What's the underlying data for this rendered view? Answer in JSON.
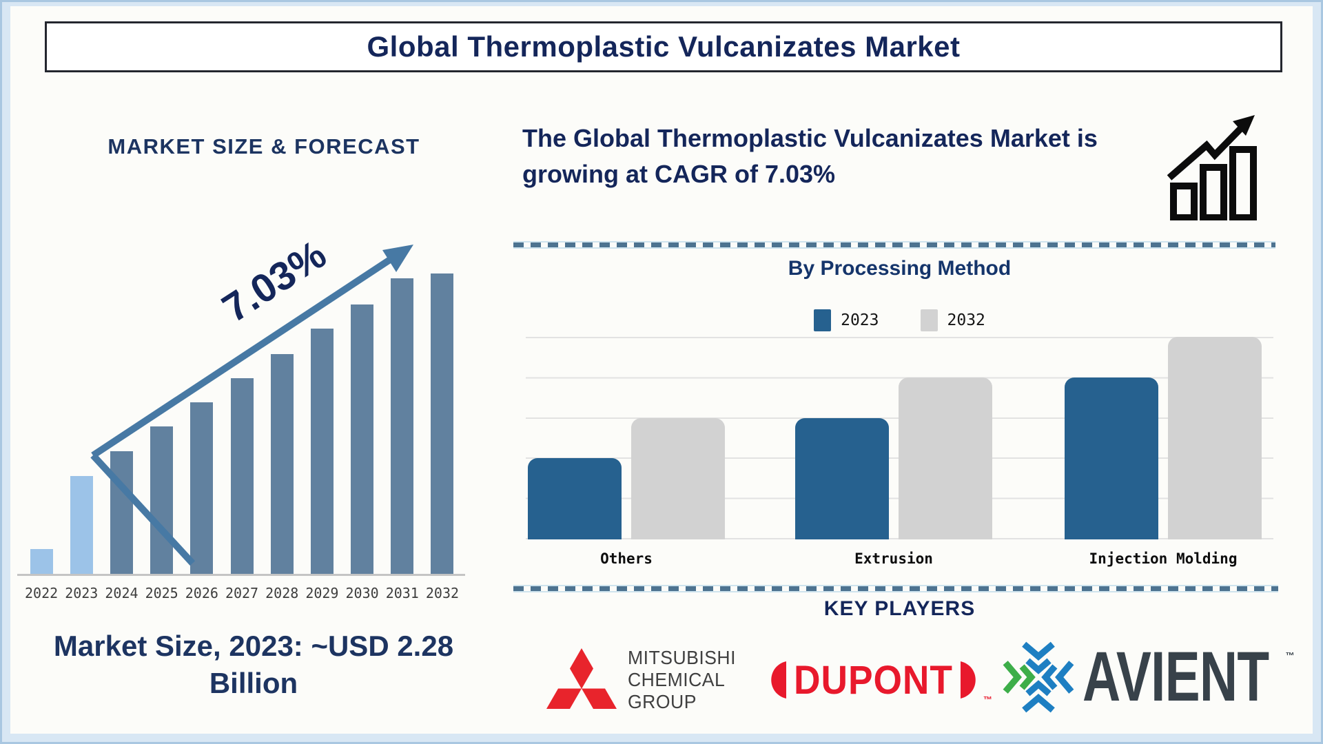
{
  "page": {
    "title": "Global Thermoplastic Vulcanizates Market"
  },
  "left_panel": {
    "section_title": "MARKET SIZE & FORECAST",
    "cagr_annotation": "7.03%",
    "market_size_note": "Market Size, 2023: ~USD 2.28 Billion",
    "arrow_icon": "growth-arrow-icon"
  },
  "right_panel": {
    "headline": "The Global Thermoplastic Vulcanizates Market is growing at CAGR of 7.03%",
    "growth_icon": "bar-chart-growth-icon",
    "method_section_title": "By Processing Method",
    "key_players_title": "KEY PLAYERS",
    "key_players": [
      {
        "name": "Mitsubishi Chemical Group",
        "logo_icon": "mitsubishi-three-diamonds-icon",
        "logo_line1": "MITSUBISHI",
        "logo_line2": "CHEMICAL",
        "logo_line3": "GROUP"
      },
      {
        "name": "DuPont",
        "logo_icon": "dupont-oval-icon",
        "logo_text": "DUPONT",
        "trademark": "™"
      },
      {
        "name": "Avient",
        "logo_icon": "avient-chevron-icon",
        "logo_text": "AVIENT",
        "trademark": "™"
      }
    ]
  },
  "colors": {
    "navy_text": "#14265a",
    "market_bar_highlight": "#9cc3e8",
    "market_bar_default": "#61819f",
    "arrow_blue": "#4779a4",
    "method_2023_blue": "#26618f",
    "method_2032_gray": "#d2d2d2",
    "dash_blue": "#4d7390",
    "dupont_red": "#e8192c",
    "mitsubishi_red": "#e8242c",
    "avient_green": "#3dae49",
    "avient_blue": "#1e7fc2",
    "avient_dark": "#38424a"
  },
  "chart_data": [
    {
      "id": "market_size_forecast",
      "type": "bar",
      "title": "MARKET SIZE & FORECAST",
      "categories": [
        "2022",
        "2023",
        "2024",
        "2025",
        "2026",
        "2027",
        "2028",
        "2029",
        "2030",
        "2031",
        "2032"
      ],
      "values_relative": [
        0.083,
        0.326,
        0.409,
        0.49,
        0.57,
        0.651,
        0.731,
        0.816,
        0.897,
        0.984,
        1.0
      ],
      "note": "Y-axis unlabeled; values are relative bar heights (fraction of 2032 bar). Context shown: 2023 market size ~USD 2.28 Billion, CAGR 7.03%",
      "annotation": "7.03%",
      "highlight_years": [
        "2022",
        "2023"
      ],
      "bar_color_highlight": "#9cc3e8",
      "bar_color_default": "#61819f",
      "grid": false,
      "legend": false
    },
    {
      "id": "by_processing_method",
      "type": "bar",
      "title": "By Processing Method",
      "categories": [
        "Others",
        "Extrusion",
        "Injection Molding"
      ],
      "series": [
        {
          "name": "2023",
          "color": "#26618f",
          "values": [
            2,
            3,
            4
          ]
        },
        {
          "name": "2032",
          "color": "#d2d2d2",
          "values": [
            3,
            4,
            5
          ]
        }
      ],
      "ylim": [
        0,
        5
      ],
      "note": "Y-axis unlabeled; values estimated in gridline units (6 horizontal gridlines, unit spacing)",
      "grid": true,
      "legend_position": "top"
    }
  ]
}
